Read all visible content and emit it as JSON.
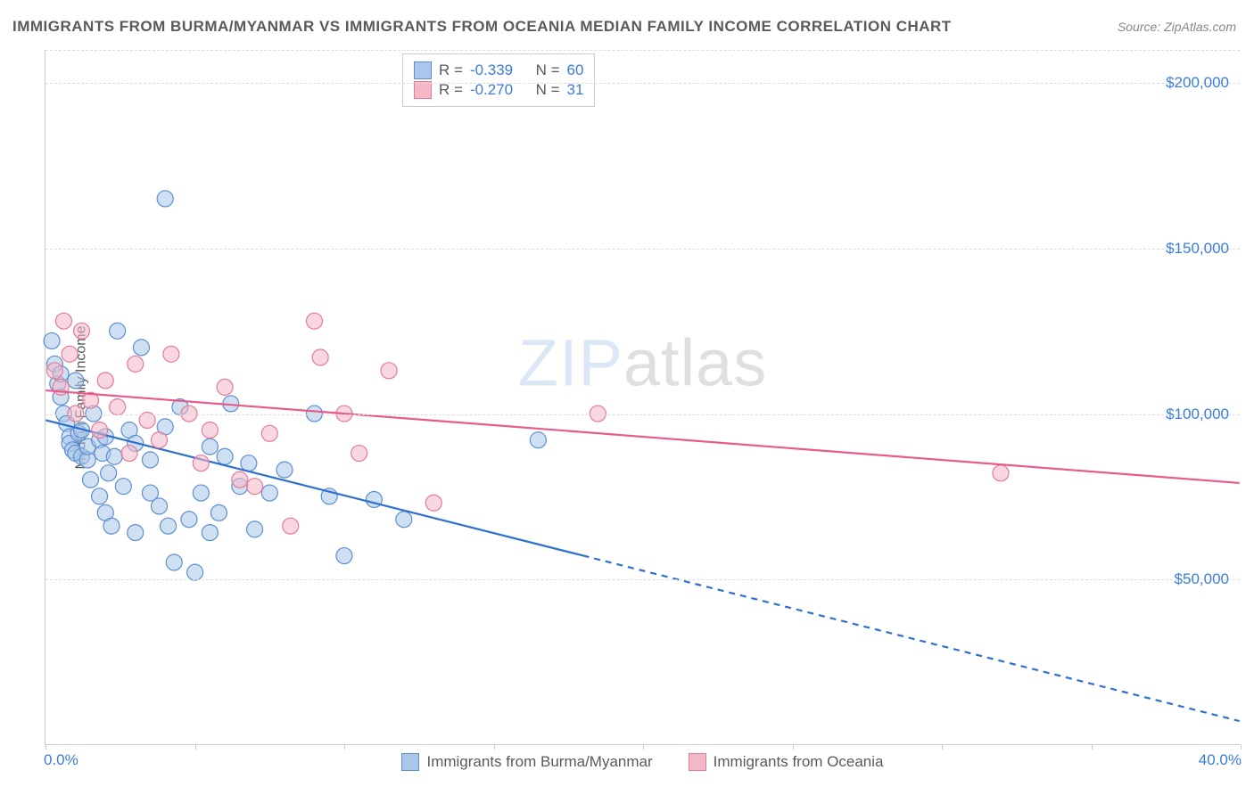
{
  "title": "IMMIGRANTS FROM BURMA/MYANMAR VS IMMIGRANTS FROM OCEANIA MEDIAN FAMILY INCOME CORRELATION CHART",
  "source": "Source: ZipAtlas.com",
  "watermark_a": "ZIP",
  "watermark_b": "atlas",
  "chart": {
    "type": "scatter",
    "background_color": "#ffffff",
    "grid_color": "#dddddd",
    "axis_color": "#cccccc",
    "tick_label_color": "#3b7dd8",
    "axis_title_color": "#5a5a5a",
    "tick_fontsize": 17,
    "axis_title_fontsize": 16,
    "xlim": [
      0,
      40
    ],
    "xlim_labels": [
      "0.0%",
      "40.0%"
    ],
    "xtick_positions": [
      0,
      5,
      10,
      15,
      20,
      25,
      30,
      35,
      40
    ],
    "ylim": [
      0,
      210000
    ],
    "ytick_positions": [
      50000,
      100000,
      150000,
      200000
    ],
    "ytick_labels": [
      "$50,000",
      "$100,000",
      "$150,000",
      "$200,000"
    ],
    "yaxis_title": "Median Family Income",
    "marker_radius": 9,
    "marker_opacity": 0.55,
    "series": [
      {
        "name": "Immigrants from Burma/Myanmar",
        "color_fill": "#a9c7ea",
        "color_stroke": "#5b8fd0",
        "R": "-0.339",
        "N": "60",
        "trend": {
          "x1": 0,
          "y1": 98000,
          "x2": 40,
          "y2": 7000,
          "solid_until_x": 18,
          "color": "#2f6fd0",
          "width": 2.2
        },
        "points": [
          [
            0.2,
            122000
          ],
          [
            0.3,
            115000
          ],
          [
            0.4,
            109000
          ],
          [
            0.5,
            112000
          ],
          [
            0.5,
            105000
          ],
          [
            0.6,
            100000
          ],
          [
            0.7,
            97000
          ],
          [
            0.8,
            93000
          ],
          [
            0.8,
            91000
          ],
          [
            0.9,
            89000
          ],
          [
            1.0,
            88000
          ],
          [
            1.0,
            110000
          ],
          [
            1.1,
            94000
          ],
          [
            1.2,
            87000
          ],
          [
            1.2,
            95000
          ],
          [
            1.4,
            86000
          ],
          [
            1.4,
            90000
          ],
          [
            1.5,
            80000
          ],
          [
            1.6,
            100000
          ],
          [
            1.8,
            92000
          ],
          [
            1.8,
            75000
          ],
          [
            1.9,
            88000
          ],
          [
            2.0,
            70000
          ],
          [
            2.0,
            93000
          ],
          [
            2.1,
            82000
          ],
          [
            2.2,
            66000
          ],
          [
            2.3,
            87000
          ],
          [
            2.4,
            125000
          ],
          [
            2.6,
            78000
          ],
          [
            2.8,
            95000
          ],
          [
            3.0,
            64000
          ],
          [
            3.0,
            91000
          ],
          [
            3.2,
            120000
          ],
          [
            3.5,
            76000
          ],
          [
            3.5,
            86000
          ],
          [
            3.8,
            72000
          ],
          [
            4.0,
            165000
          ],
          [
            4.0,
            96000
          ],
          [
            4.1,
            66000
          ],
          [
            4.3,
            55000
          ],
          [
            4.5,
            102000
          ],
          [
            4.8,
            68000
          ],
          [
            5.0,
            52000
          ],
          [
            5.2,
            76000
          ],
          [
            5.5,
            90000
          ],
          [
            5.5,
            64000
          ],
          [
            5.8,
            70000
          ],
          [
            6.0,
            87000
          ],
          [
            6.2,
            103000
          ],
          [
            6.5,
            78000
          ],
          [
            6.8,
            85000
          ],
          [
            7.0,
            65000
          ],
          [
            7.5,
            76000
          ],
          [
            8.0,
            83000
          ],
          [
            9.0,
            100000
          ],
          [
            9.5,
            75000
          ],
          [
            10.0,
            57000
          ],
          [
            11.0,
            74000
          ],
          [
            12.0,
            68000
          ],
          [
            16.5,
            92000
          ]
        ]
      },
      {
        "name": "Immigrants from Oceania",
        "color_fill": "#f4b7c6",
        "color_stroke": "#e57a98",
        "R": "-0.270",
        "N": "31",
        "trend": {
          "x1": 0,
          "y1": 107000,
          "x2": 40,
          "y2": 79000,
          "solid_until_x": 40,
          "color": "#e85a8a",
          "width": 2.2
        },
        "points": [
          [
            0.3,
            113000
          ],
          [
            0.5,
            108000
          ],
          [
            0.6,
            128000
          ],
          [
            0.8,
            118000
          ],
          [
            1.0,
            100000
          ],
          [
            1.2,
            125000
          ],
          [
            1.5,
            104000
          ],
          [
            1.8,
            95000
          ],
          [
            2.0,
            110000
          ],
          [
            2.4,
            102000
          ],
          [
            2.8,
            88000
          ],
          [
            3.0,
            115000
          ],
          [
            3.4,
            98000
          ],
          [
            3.8,
            92000
          ],
          [
            4.2,
            118000
          ],
          [
            4.8,
            100000
          ],
          [
            5.2,
            85000
          ],
          [
            5.5,
            95000
          ],
          [
            6.0,
            108000
          ],
          [
            6.5,
            80000
          ],
          [
            7.0,
            78000
          ],
          [
            7.5,
            94000
          ],
          [
            8.2,
            66000
          ],
          [
            9.0,
            128000
          ],
          [
            9.2,
            117000
          ],
          [
            10.0,
            100000
          ],
          [
            10.5,
            88000
          ],
          [
            11.5,
            113000
          ],
          [
            13.0,
            73000
          ],
          [
            18.5,
            100000
          ],
          [
            32.0,
            82000
          ]
        ]
      }
    ],
    "legend_bottom_labels": [
      "Immigrants from Burma/Myanmar",
      "Immigrants from Oceania"
    ],
    "legend_top": {
      "R_label": "R =",
      "N_label": "N ="
    }
  }
}
